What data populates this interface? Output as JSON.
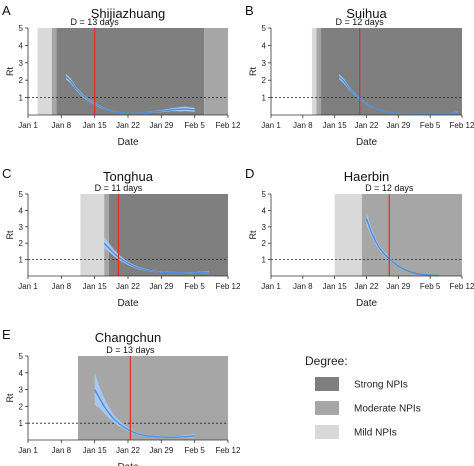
{
  "colors": {
    "strong": "#7f7f7f",
    "moderate": "#a6a6a6",
    "mild": "#d9d9d9",
    "ribbon": "#a9c8ef",
    "line": "#4a90e2",
    "dline": "#e8282b",
    "axis": "#333333"
  },
  "x_tick_labels": [
    "Jan 1",
    "Jan 8",
    "Jan 15",
    "Jan 22",
    "Jan 29",
    "Feb 5",
    "Feb 12"
  ],
  "y_tick_labels": [
    "1",
    "2",
    "3",
    "4",
    "5"
  ],
  "legend": {
    "title": "Degree:",
    "items": [
      {
        "label": "Strong NPIs",
        "key": "strong"
      },
      {
        "label": "Moderate NPIs",
        "key": "moderate"
      },
      {
        "label": "Mild NPIs",
        "key": "mild"
      }
    ]
  },
  "chart_data": [
    {
      "type": "line",
      "panel_label": "A",
      "title": "Shijiazhuang",
      "xlabel": "Date",
      "ylabel": "Rt",
      "d_label": "D = 13 days",
      "d_day": 14,
      "xlim": [
        0,
        42
      ],
      "ylim": [
        0,
        5
      ],
      "threshold": 1,
      "bands": [
        {
          "from": 2,
          "to": 5,
          "degree": "mild"
        },
        {
          "from": 5,
          "to": 6,
          "degree": "moderate"
        },
        {
          "from": 6,
          "to": 37,
          "degree": "strong"
        },
        {
          "from": 37,
          "to": 42,
          "degree": "moderate"
        }
      ],
      "series": [
        {
          "x": [
            8,
            9,
            10,
            11,
            12,
            13,
            14,
            15,
            16,
            17,
            18,
            19,
            20,
            21,
            22,
            23,
            24,
            25,
            26,
            27,
            28,
            29,
            30,
            31,
            32,
            33,
            34,
            35
          ],
          "y": [
            2.2,
            1.95,
            1.55,
            1.25,
            1.0,
            0.82,
            0.65,
            0.5,
            0.38,
            0.28,
            0.2,
            0.15,
            0.12,
            0.1,
            0.1,
            0.1,
            0.12,
            0.15,
            0.18,
            0.2,
            0.22,
            0.25,
            0.3,
            0.32,
            0.33,
            0.35,
            0.32,
            0.3
          ],
          "lo": [
            2.05,
            1.82,
            1.45,
            1.15,
            0.92,
            0.75,
            0.58,
            0.44,
            0.33,
            0.24,
            0.16,
            0.12,
            0.09,
            0.07,
            0.07,
            0.07,
            0.09,
            0.11,
            0.13,
            0.15,
            0.16,
            0.18,
            0.22,
            0.22,
            0.21,
            0.22,
            0.2,
            0.18
          ],
          "hi": [
            2.35,
            2.08,
            1.65,
            1.35,
            1.08,
            0.89,
            0.72,
            0.56,
            0.43,
            0.32,
            0.24,
            0.18,
            0.15,
            0.13,
            0.13,
            0.13,
            0.15,
            0.19,
            0.23,
            0.25,
            0.28,
            0.32,
            0.38,
            0.42,
            0.45,
            0.48,
            0.44,
            0.42
          ]
        }
      ]
    },
    {
      "type": "line",
      "panel_label": "B",
      "title": "Suihua",
      "xlabel": "Date",
      "ylabel": "Rt",
      "d_label": "D = 12 days",
      "d_day": 19.5,
      "xlim": [
        0,
        42
      ],
      "ylim": [
        0,
        5
      ],
      "threshold": 1,
      "bands": [
        {
          "from": 9,
          "to": 10,
          "degree": "mild"
        },
        {
          "from": 10,
          "to": 11,
          "degree": "moderate"
        },
        {
          "from": 11,
          "to": 42,
          "degree": "strong"
        }
      ],
      "series": [
        {
          "x": [
            15,
            16,
            17,
            18,
            19,
            20,
            21,
            22,
            23,
            24,
            25,
            26,
            27,
            28,
            29,
            30,
            31,
            32,
            33,
            34,
            35,
            36,
            37,
            38,
            39,
            40,
            41
          ],
          "y": [
            2.2,
            1.95,
            1.6,
            1.3,
            1.05,
            0.85,
            0.65,
            0.5,
            0.38,
            0.28,
            0.2,
            0.15,
            0.12,
            0.1,
            0.08,
            0.08,
            0.07,
            0.07,
            0.06,
            0.06,
            0.06,
            0.05,
            0.05,
            0.06,
            0.08,
            0.12,
            0.18
          ],
          "lo": [
            2.05,
            1.82,
            1.5,
            1.22,
            0.98,
            0.79,
            0.6,
            0.46,
            0.35,
            0.25,
            0.18,
            0.13,
            0.1,
            0.08,
            0.06,
            0.06,
            0.05,
            0.05,
            0.04,
            0.04,
            0.04,
            0.03,
            0.03,
            0.04,
            0.05,
            0.08,
            0.12
          ],
          "hi": [
            2.35,
            2.08,
            1.7,
            1.38,
            1.12,
            0.91,
            0.7,
            0.54,
            0.41,
            0.31,
            0.22,
            0.17,
            0.14,
            0.12,
            0.1,
            0.1,
            0.09,
            0.09,
            0.08,
            0.08,
            0.08,
            0.07,
            0.07,
            0.08,
            0.11,
            0.16,
            0.24
          ]
        }
      ]
    },
    {
      "type": "line",
      "panel_label": "C",
      "title": "Tonghua",
      "xlabel": "Date",
      "ylabel": "Rt",
      "d_label": "D = 11 days",
      "d_day": 19,
      "xlim": [
        0,
        42
      ],
      "ylim": [
        0,
        5
      ],
      "threshold": 1,
      "bands": [
        {
          "from": 11,
          "to": 16,
          "degree": "mild"
        },
        {
          "from": 16,
          "to": 17,
          "degree": "moderate"
        },
        {
          "from": 17,
          "to": 42,
          "degree": "strong"
        }
      ],
      "series": [
        {
          "x": [
            16,
            17,
            18,
            19,
            20,
            21,
            22,
            23,
            24,
            25,
            26,
            27,
            28,
            29,
            30,
            31,
            32,
            33,
            34,
            35,
            36,
            37,
            38
          ],
          "y": [
            2.0,
            1.7,
            1.4,
            1.15,
            0.95,
            0.78,
            0.62,
            0.5,
            0.42,
            0.35,
            0.3,
            0.26,
            0.24,
            0.22,
            0.2,
            0.2,
            0.19,
            0.19,
            0.18,
            0.19,
            0.2,
            0.21,
            0.22
          ],
          "lo": [
            1.7,
            1.48,
            1.22,
            1.0,
            0.83,
            0.68,
            0.54,
            0.43,
            0.36,
            0.3,
            0.25,
            0.22,
            0.2,
            0.18,
            0.16,
            0.16,
            0.15,
            0.15,
            0.14,
            0.15,
            0.15,
            0.16,
            0.16
          ],
          "hi": [
            2.4,
            2.0,
            1.62,
            1.32,
            1.08,
            0.88,
            0.71,
            0.58,
            0.49,
            0.41,
            0.35,
            0.31,
            0.29,
            0.27,
            0.25,
            0.25,
            0.24,
            0.24,
            0.23,
            0.24,
            0.26,
            0.27,
            0.29
          ]
        }
      ]
    },
    {
      "type": "line",
      "panel_label": "D",
      "title": "Haerbin",
      "xlabel": "Date",
      "ylabel": "Rt",
      "d_label": "D = 12 days",
      "d_day": 26,
      "xlim": [
        0,
        42
      ],
      "ylim": [
        0,
        5
      ],
      "threshold": 1,
      "bands": [
        {
          "from": 14,
          "to": 20,
          "degree": "mild"
        },
        {
          "from": 20,
          "to": 42,
          "degree": "moderate"
        }
      ],
      "series": [
        {
          "x": [
            21,
            22,
            23,
            24,
            25,
            26,
            27,
            28,
            29,
            30,
            31,
            32,
            33,
            34,
            35,
            36,
            37
          ],
          "y": [
            3.5,
            2.7,
            2.1,
            1.65,
            1.3,
            1.05,
            0.8,
            0.6,
            0.45,
            0.32,
            0.22,
            0.15,
            0.1,
            0.07,
            0.05,
            0.04,
            0.03
          ],
          "lo": [
            3.1,
            2.45,
            1.92,
            1.5,
            1.18,
            0.95,
            0.72,
            0.54,
            0.4,
            0.28,
            0.19,
            0.13,
            0.08,
            0.05,
            0.04,
            0.03,
            0.02
          ],
          "hi": [
            3.9,
            2.95,
            2.28,
            1.8,
            1.42,
            1.15,
            0.88,
            0.66,
            0.5,
            0.36,
            0.25,
            0.17,
            0.12,
            0.09,
            0.06,
            0.05,
            0.04
          ]
        }
      ]
    },
    {
      "type": "line",
      "panel_label": "E",
      "title": "Changchun",
      "xlabel": "Date",
      "ylabel": "Rt",
      "d_label": "D = 13 days",
      "d_day": 21.5,
      "xlim": [
        0,
        42
      ],
      "ylim": [
        0,
        5
      ],
      "threshold": 1,
      "bands": [
        {
          "from": 10.5,
          "to": 42,
          "degree": "moderate"
        }
      ],
      "series": [
        {
          "x": [
            14,
            15,
            16,
            17,
            18,
            19,
            20,
            21,
            22,
            23,
            24,
            25,
            26,
            27,
            28,
            29,
            30,
            31,
            32,
            33,
            34,
            35
          ],
          "y": [
            3.0,
            2.5,
            2.0,
            1.6,
            1.25,
            1.0,
            0.8,
            0.62,
            0.48,
            0.38,
            0.3,
            0.25,
            0.22,
            0.2,
            0.18,
            0.17,
            0.16,
            0.16,
            0.18,
            0.2,
            0.22,
            0.25
          ],
          "lo": [
            2.1,
            1.9,
            1.6,
            1.3,
            1.05,
            0.85,
            0.68,
            0.52,
            0.4,
            0.31,
            0.24,
            0.2,
            0.17,
            0.15,
            0.13,
            0.12,
            0.11,
            0.11,
            0.12,
            0.13,
            0.14,
            0.15
          ],
          "hi": [
            4.0,
            3.2,
            2.5,
            1.95,
            1.5,
            1.2,
            0.95,
            0.74,
            0.58,
            0.46,
            0.37,
            0.31,
            0.28,
            0.26,
            0.24,
            0.23,
            0.22,
            0.22,
            0.25,
            0.28,
            0.31,
            0.36
          ]
        }
      ]
    }
  ]
}
